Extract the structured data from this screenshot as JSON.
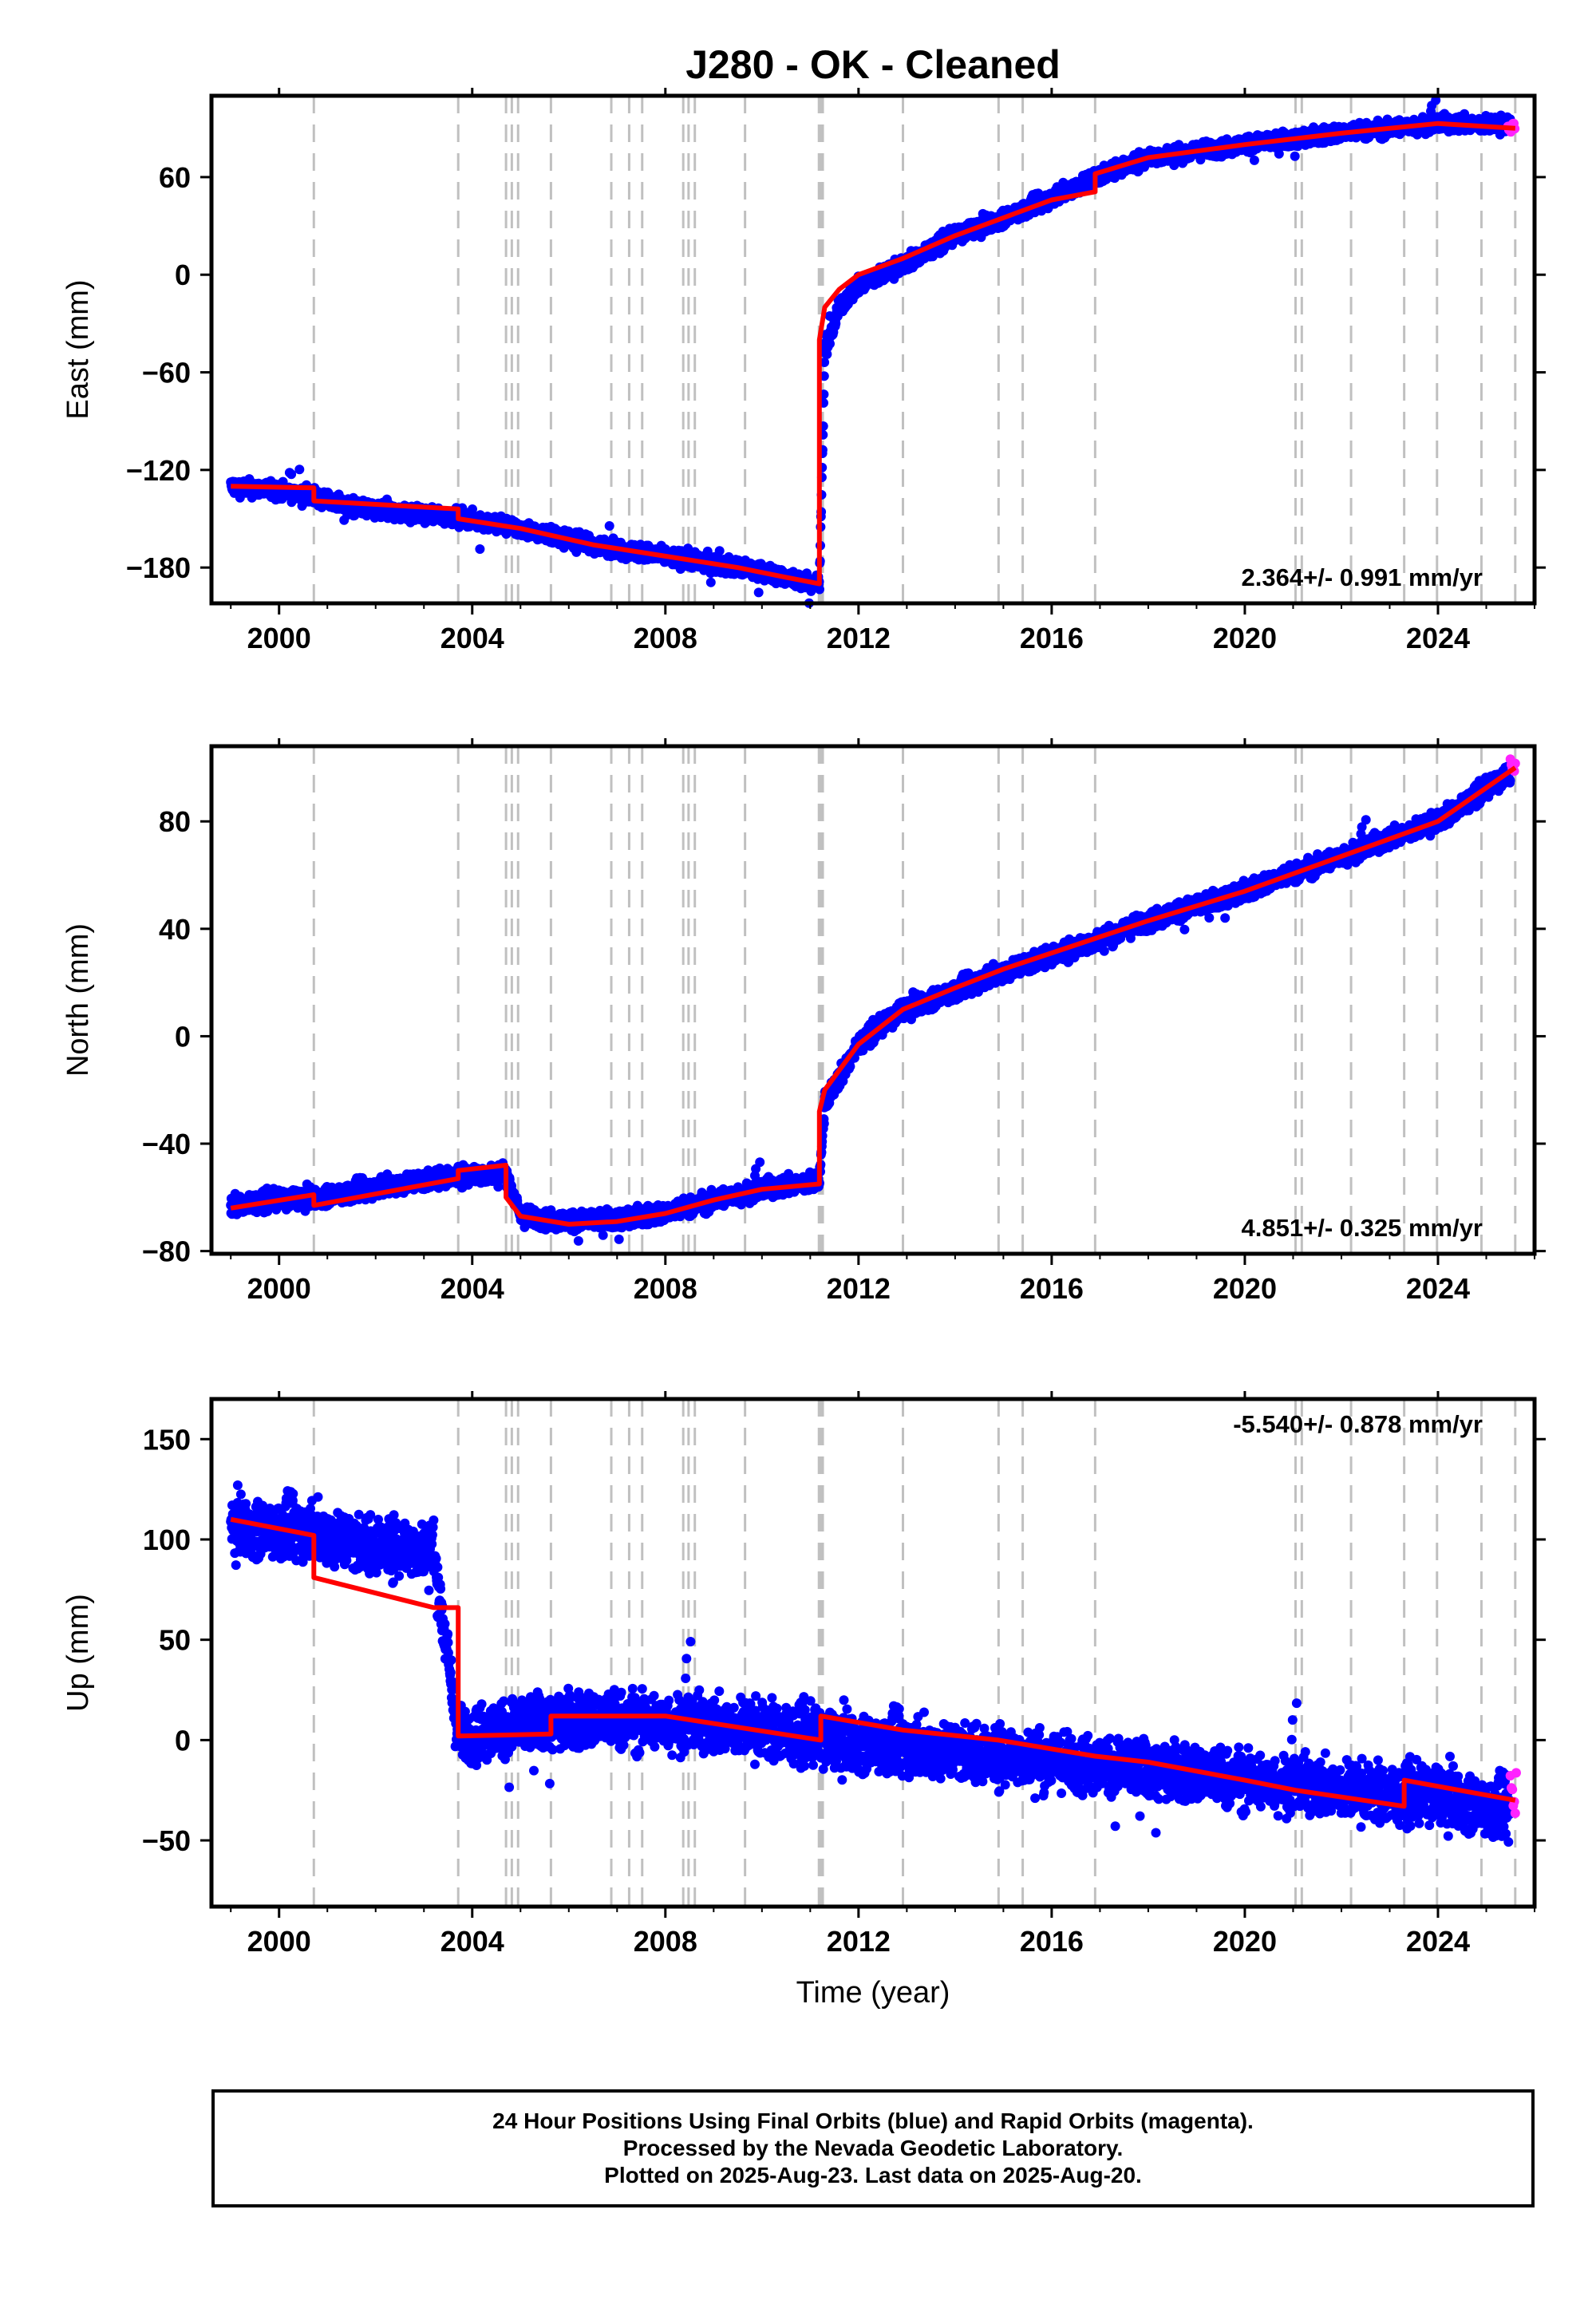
{
  "title": "J280  - OK - Cleaned",
  "colors": {
    "final_orbits": "#0000ff",
    "rapid_orbits": "#ff22ff",
    "model": "#ff0000",
    "event_lines": "#c0c0c0",
    "frame": "#000000"
  },
  "event_years": [
    2000.72,
    2003.71,
    2004.7,
    2004.82,
    2004.95,
    2005.63,
    2006.88,
    2007.25,
    2007.52,
    2008.37,
    2008.48,
    2008.61,
    2009.65,
    2011.18,
    2011.22,
    2011.26,
    2012.92,
    2014.9,
    2015.4,
    2016.9,
    2021.05,
    2021.18,
    2022.2,
    2023.3,
    2023.98,
    2024.9,
    2025.6
  ],
  "footer": {
    "line1": "24 Hour Positions Using Final Orbits (blue) and Rapid Orbits (magenta).",
    "line2": "Processed by the Nevada Geodetic Laboratory.",
    "line3": "Plotted on 2025-Aug-23. Last data on 2025-Aug-20."
  },
  "chart_data": [
    {
      "type": "scatter",
      "name": "east",
      "ylabel": "East (mm)",
      "xlim": [
        1998.6,
        2026.0
      ],
      "ylim": [
        -202,
        110
      ],
      "xticks": [
        2000,
        2004,
        2008,
        2012,
        2016,
        2020,
        2024
      ],
      "yticks": [
        -180,
        -120,
        -60,
        0,
        60
      ],
      "rate_label": "2.364+/- 0.991 mm/yr",
      "rate_position": "bottom-right",
      "series": [
        {
          "kind": "final",
          "x": [
            1999.0,
            2000.0,
            2000.72,
            2001.5,
            2002.5,
            2003.71,
            2005.0,
            2006.5,
            2008.0,
            2009.5,
            2010.5,
            2011.19,
            2011.3,
            2011.6,
            2012.0,
            2012.92,
            2014.0,
            2015.0,
            2016.0,
            2016.9,
            2018.0,
            2020.0,
            2022.0,
            2024.0,
            2025.5
          ],
          "y": [
            -130,
            -133,
            -136,
            -143,
            -146,
            -149,
            -156,
            -166,
            -173,
            -180,
            -186,
            -190,
            -50,
            -20,
            -7,
            6,
            24,
            35,
            47,
            60,
            72,
            80,
            87,
            93,
            92
          ],
          "noise": 3.5
        },
        {
          "kind": "rapid",
          "x": [
            2025.45,
            2025.5,
            2025.55,
            2025.6
          ],
          "y": [
            92,
            88,
            94,
            90
          ],
          "noise": 3
        }
      ],
      "model": {
        "x": [
          1999.0,
          2000.72,
          2000.72,
          2003.71,
          2003.71,
          2005.0,
          2006.5,
          2008.0,
          2009.5,
          2010.5,
          2011.19,
          2011.19,
          2011.3,
          2011.6,
          2012.0,
          2012.92,
          2014.0,
          2015.0,
          2016.0,
          2016.9,
          2016.9,
          2018.0,
          2020.0,
          2022.0,
          2024.0,
          2025.6
        ],
        "y": [
          -130,
          -131,
          -139,
          -144,
          -150,
          -156,
          -166,
          -173,
          -180,
          -186,
          -190,
          -40,
          -20,
          -9,
          0,
          10,
          24,
          35,
          46,
          51,
          62,
          72,
          80,
          87,
          93,
          90
        ]
      }
    },
    {
      "type": "scatter",
      "name": "north",
      "ylabel": "North (mm)",
      "xlim": [
        1998.6,
        2026.0
      ],
      "ylim": [
        -81,
        108
      ],
      "xticks": [
        2000,
        2004,
        2008,
        2012,
        2016,
        2020,
        2024
      ],
      "yticks": [
        -80,
        -40,
        0,
        40,
        80
      ],
      "rate_label": "4.851+/- 0.325 mm/yr",
      "rate_position": "bottom-right",
      "series": [
        {
          "kind": "final",
          "x": [
            1999.0,
            2000.0,
            2000.72,
            2001.5,
            2002.5,
            2003.71,
            2004.7,
            2005.0,
            2006.0,
            2007.0,
            2008.0,
            2009.0,
            2010.0,
            2011.19,
            2011.3,
            2012.0,
            2012.92,
            2014.0,
            2015.0,
            2016.0,
            2017.0,
            2018.0,
            2020.0,
            2022.0,
            2024.0,
            2025.5
          ],
          "y": [
            -63,
            -61,
            -60,
            -58,
            -55,
            -52,
            -51,
            -67,
            -69,
            -68,
            -66,
            -61,
            -57,
            -54,
            -25,
            -3,
            10,
            17,
            24,
            30,
            36,
            43,
            54,
            67,
            80,
            98
          ],
          "noise": 2.5
        },
        {
          "kind": "rapid",
          "x": [
            2025.5,
            2025.55,
            2025.6
          ],
          "y": [
            101,
            99,
            102
          ],
          "noise": 2
        }
      ],
      "model": {
        "x": [
          1999.0,
          2000.72,
          2000.72,
          2003.71,
          2003.71,
          2004.7,
          2004.7,
          2005.0,
          2006.0,
          2007.0,
          2008.0,
          2009.0,
          2010.0,
          2011.19,
          2011.19,
          2011.3,
          2012.0,
          2012.92,
          2014.0,
          2015.0,
          2016.0,
          2017.0,
          2018.0,
          2020.0,
          2022.0,
          2024.0,
          2025.6
        ],
        "y": [
          -64,
          -59,
          -63,
          -53,
          -50,
          -48,
          -60,
          -67,
          -70,
          -69,
          -66,
          -61,
          -57,
          -55,
          -28,
          -20,
          -3,
          10,
          18,
          25,
          31,
          37,
          43,
          54,
          67,
          80,
          100
        ]
      }
    },
    {
      "type": "scatter",
      "name": "up",
      "xlabel": "Time (year)",
      "ylabel": "Up (mm)",
      "xlim": [
        1998.6,
        2026.0
      ],
      "ylim": [
        -83,
        170
      ],
      "xticks": [
        2000,
        2004,
        2008,
        2012,
        2016,
        2020,
        2024
      ],
      "yticks": [
        -50,
        0,
        50,
        100,
        150
      ],
      "rate_label": "-5.540+/- 0.878 mm/yr",
      "rate_position": "top-right",
      "series": [
        {
          "kind": "final",
          "x": [
            1999.0,
            2000.0,
            2000.72,
            2001.5,
            2002.5,
            2003.2,
            2003.71,
            2004.5,
            2005.5,
            2007.0,
            2008.5,
            2010.0,
            2011.5,
            2013.0,
            2014.5,
            2016.0,
            2018.0,
            2020.0,
            2022.0,
            2023.3,
            2024.0,
            2025.5
          ],
          "y": [
            107,
            105,
            104,
            98,
            96,
            94,
            2,
            5,
            9,
            10,
            8,
            5,
            0,
            -3,
            -7,
            -10,
            -15,
            -20,
            -25,
            -28,
            -27,
            -36
          ],
          "noise": 10
        },
        {
          "kind": "rapid",
          "x": [
            2025.5,
            2025.55,
            2025.6,
            2025.62
          ],
          "y": [
            -20,
            -28,
            -35,
            -17
          ],
          "noise": 4
        }
      ],
      "model": {
        "x": [
          1999.0,
          2000.72,
          2000.72,
          2003.2,
          2003.71,
          2003.71,
          2005.63,
          2005.63,
          2008.0,
          2011.22,
          2011.22,
          2012.92,
          2014.9,
          2016.9,
          2018.0,
          2020.0,
          2021.05,
          2023.3,
          2023.3,
          2024.9,
          2025.6
        ],
        "y": [
          110,
          102,
          81,
          66,
          66,
          2,
          3,
          12,
          12,
          0,
          12,
          5,
          0,
          -8,
          -11,
          -20,
          -25,
          -33,
          -20,
          -27,
          -30
        ]
      }
    }
  ]
}
